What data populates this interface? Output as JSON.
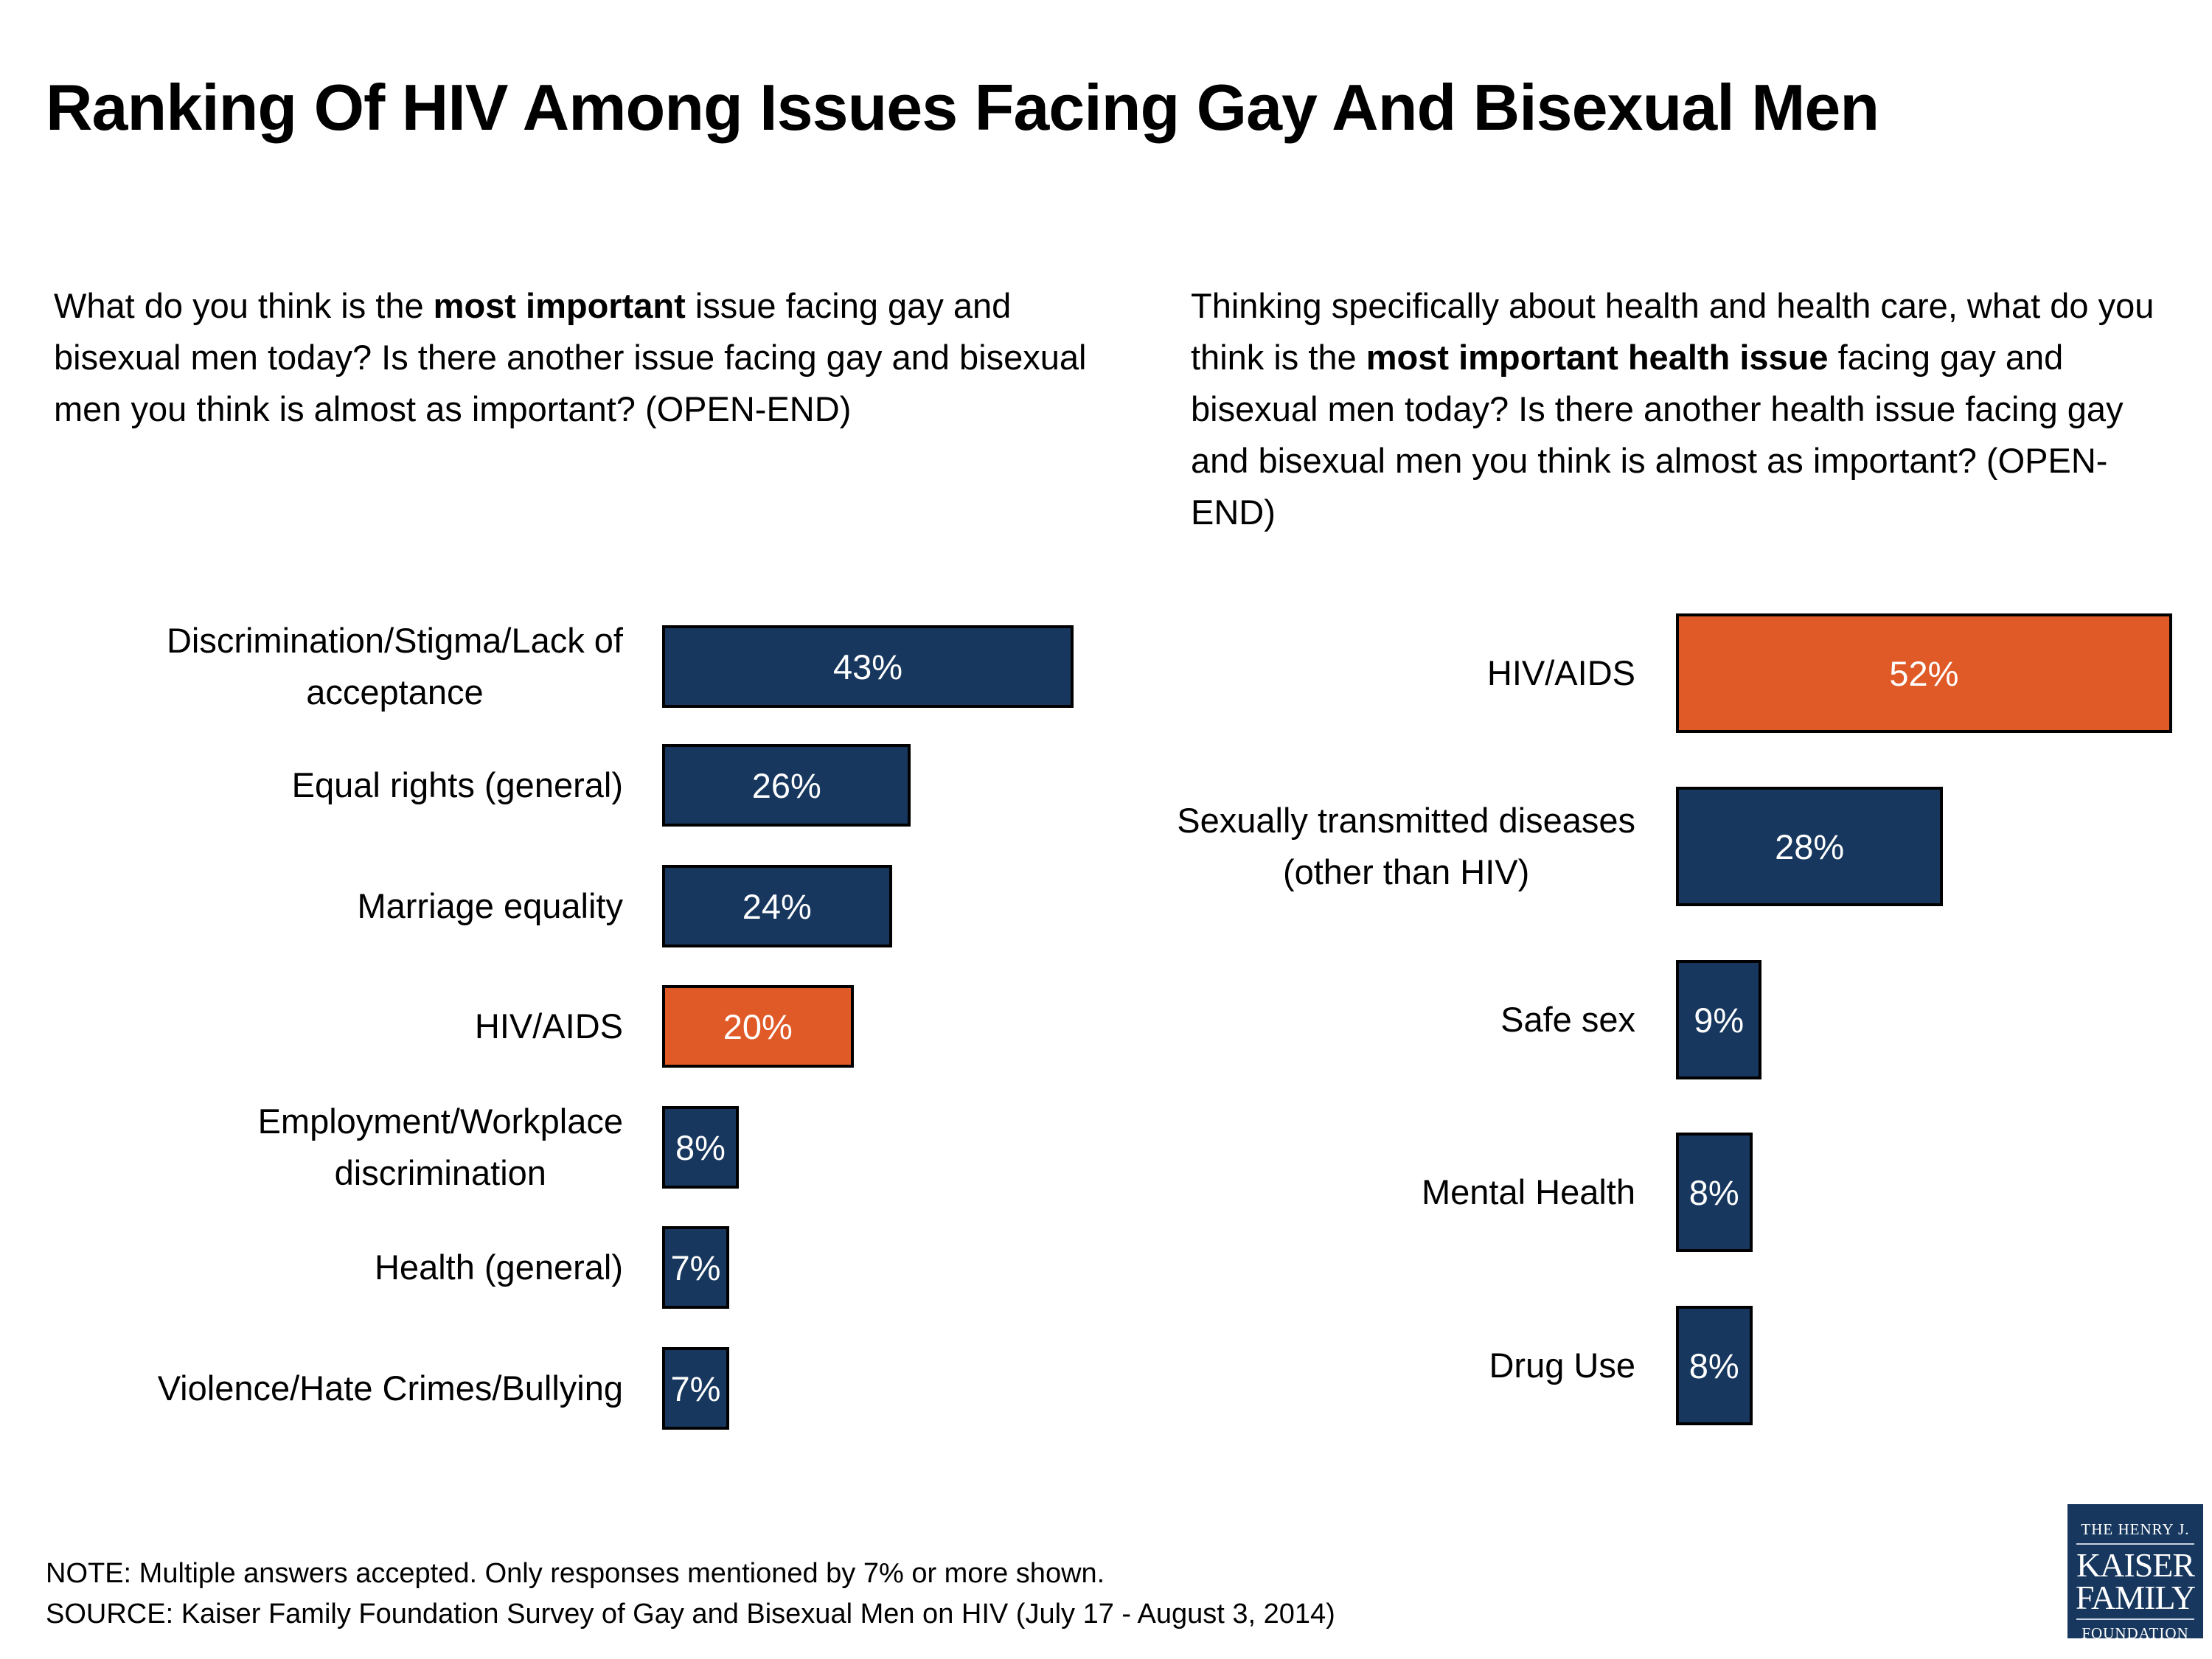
{
  "title": "Ranking Of HIV Among Issues Facing Gay And Bisexual Men",
  "left_question": {
    "pre": "What do you think is the ",
    "bold": "most important",
    "post": " issue facing gay and bisexual men today?  Is there another issue facing gay and bisexual men you think is almost as important? (OPEN-END)"
  },
  "right_question": {
    "pre": "Thinking specifically about health and health care, what do you think is the ",
    "bold": "most important health issue",
    "post": " facing gay and bisexual men today?  Is there another health issue facing gay and bisexual men you think is almost as important? (OPEN-END)"
  },
  "colors": {
    "default": "#17375E",
    "highlight": "#E05A27"
  },
  "chart_data": [
    {
      "type": "bar",
      "orientation": "horizontal",
      "categories": [
        "Discrimination/Stigma/Lack of acceptance",
        "Equal rights (general)",
        "Marriage equality",
        "HIV/AIDS",
        "Employment/Workplace discrimination",
        "Health (general)",
        "Violence/Hate Crimes/Bullying"
      ],
      "values": [
        43,
        26,
        24,
        20,
        8,
        7,
        7
      ],
      "labels": [
        "43%",
        "26%",
        "24%",
        "20%",
        "8%",
        "7%",
        "7%"
      ],
      "highlight": [
        false,
        false,
        false,
        true,
        false,
        false,
        false
      ],
      "xlim": [
        0,
        43
      ],
      "grid": false
    },
    {
      "type": "bar",
      "orientation": "horizontal",
      "categories": [
        "HIV/AIDS",
        "Sexually transmitted diseases (other than HIV)",
        "Safe sex",
        "Mental Health",
        "Drug Use"
      ],
      "values": [
        52,
        28,
        9,
        8,
        8
      ],
      "labels": [
        "52%",
        "28%",
        "9%",
        "8%",
        "8%"
      ],
      "highlight": [
        true,
        false,
        false,
        false,
        false
      ],
      "xlim": [
        0,
        52
      ],
      "grid": false
    }
  ],
  "notes": {
    "note": "NOTE: Multiple answers accepted.  Only responses mentioned by 7% or more shown.",
    "source": "SOURCE: Kaiser Family Foundation Survey of Gay and Bisexual Men on HIV (July 17 - August 3, 2014)"
  },
  "logo": {
    "line1": "THE HENRY J.",
    "line2": "KAISER",
    "line3": "FAMILY",
    "line4": "FOUNDATION"
  }
}
